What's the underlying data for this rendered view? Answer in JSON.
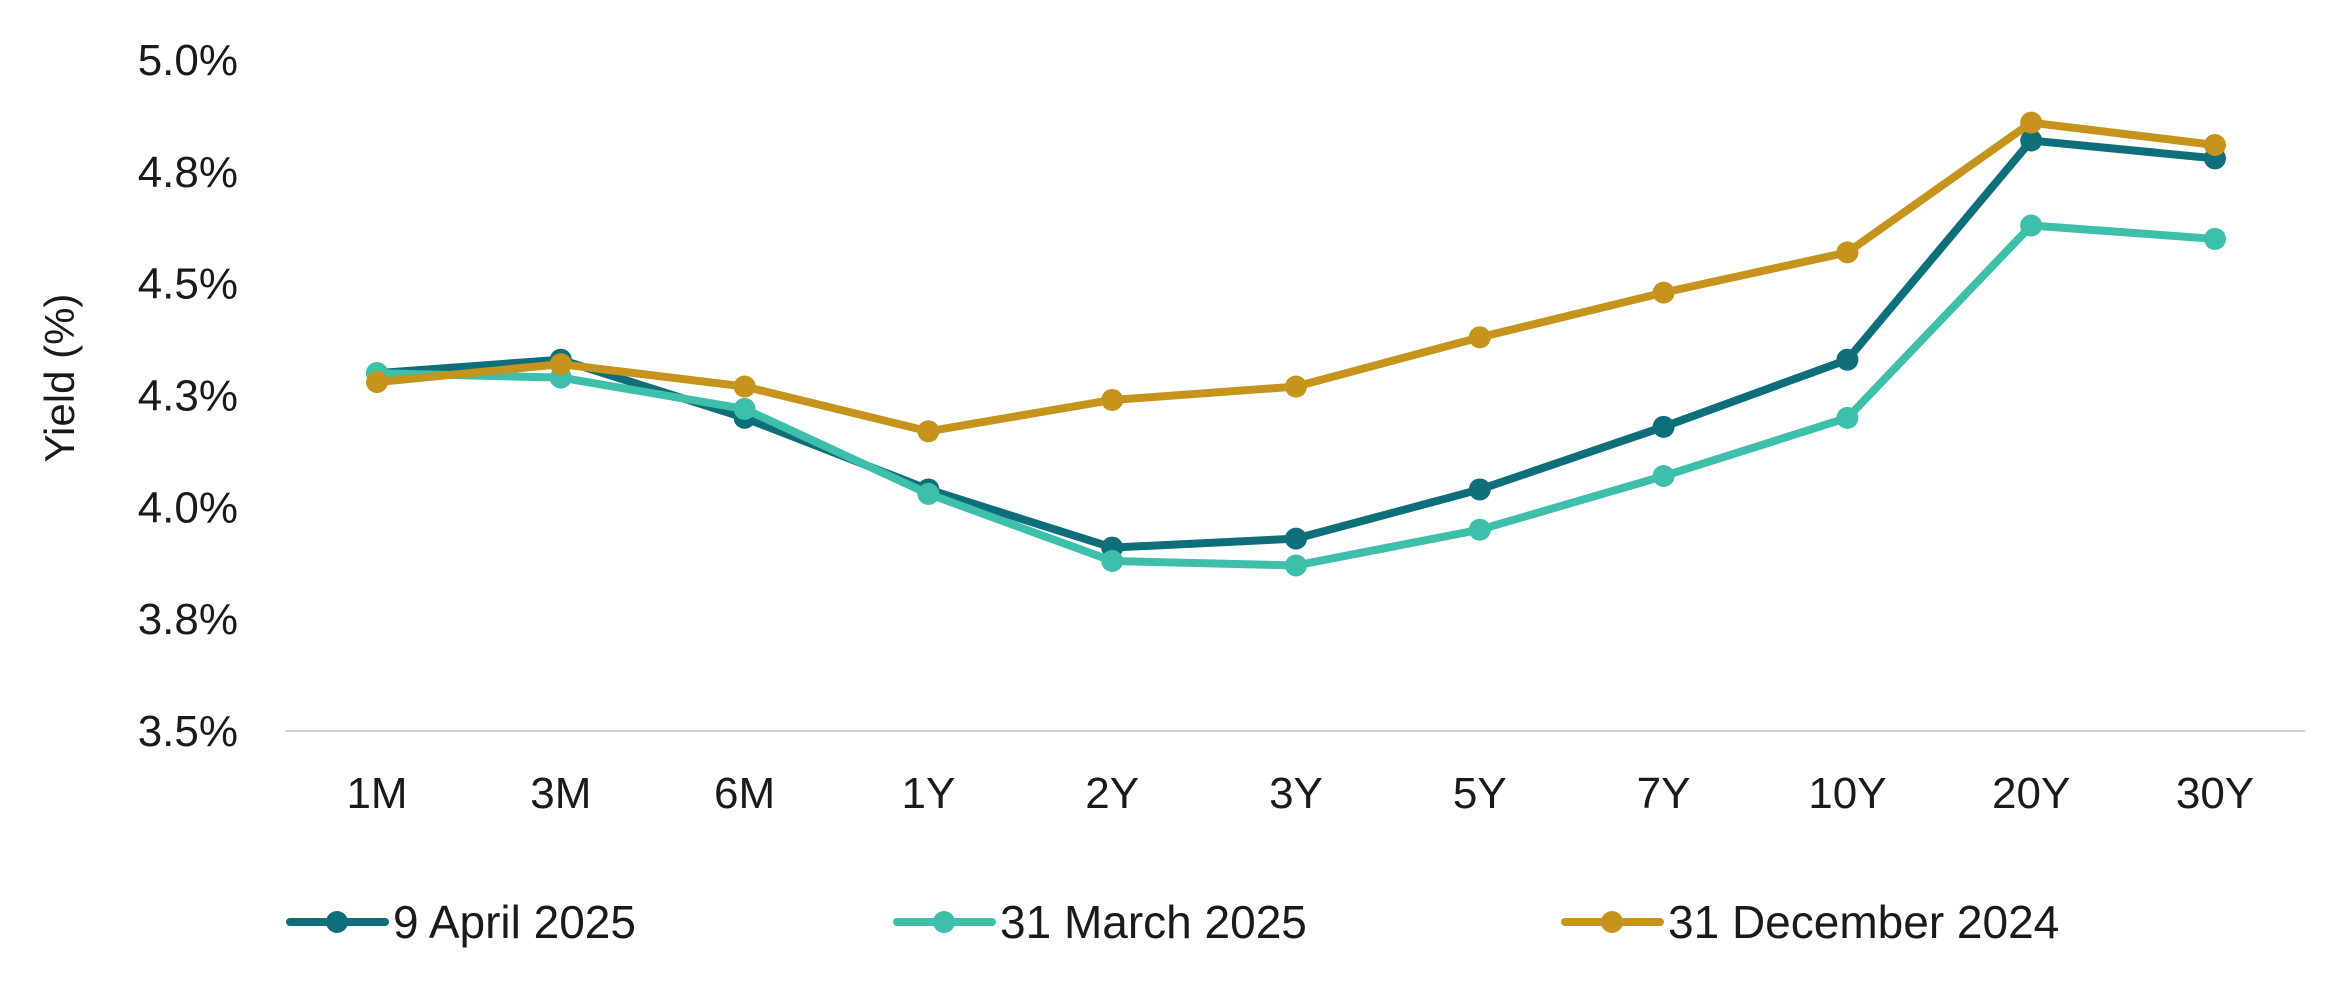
{
  "chart_data": {
    "type": "line",
    "title": "",
    "xlabel": "",
    "ylabel": "Yield (%)",
    "categories": [
      "1M",
      "3M",
      "6M",
      "1Y",
      "2Y",
      "3Y",
      "5Y",
      "7Y",
      "10Y",
      "20Y",
      "30Y"
    ],
    "ylim": [
      3.5,
      5.0
    ],
    "yticks": [
      3.5,
      3.75,
      4.0,
      4.25,
      4.5,
      4.75,
      5.0
    ],
    "ytick_labels": [
      "3.5%",
      "3.8%",
      "4.0%",
      "4.3%",
      "4.5%",
      "4.8%",
      "5.0%"
    ],
    "grid": false,
    "legend_position": "bottom",
    "series": [
      {
        "name": "9 April 2025",
        "color": "#0e6f7a",
        "values": [
          4.3,
          4.33,
          4.2,
          4.04,
          3.91,
          3.93,
          4.04,
          4.18,
          4.33,
          4.82,
          4.78
        ]
      },
      {
        "name": "31 March 2025",
        "color": "#3dbfaa",
        "values": [
          4.3,
          4.29,
          4.22,
          4.03,
          3.88,
          3.87,
          3.95,
          4.07,
          4.2,
          4.63,
          4.6
        ]
      },
      {
        "name": "31 December 2024",
        "color": "#c6931c",
        "values": [
          4.28,
          4.32,
          4.27,
          4.17,
          4.24,
          4.27,
          4.38,
          4.48,
          4.57,
          4.86,
          4.81
        ]
      }
    ]
  }
}
